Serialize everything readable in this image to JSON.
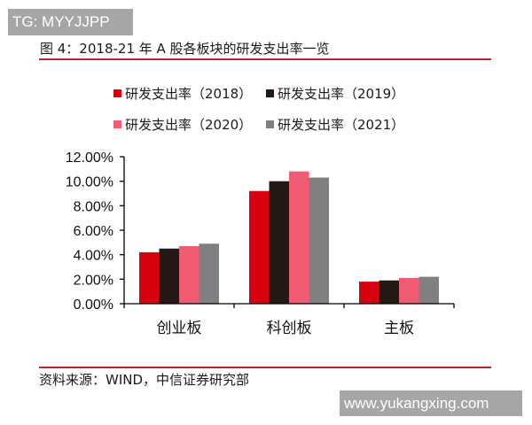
{
  "watermark_top": "TG: MYYJJPP",
  "title": "图 4：2018-21 年 A 股各板块的研发支出率一览",
  "source": "资料来源：WIND，中信证券研究部",
  "watermark_bottom": "www.yukangxing.com",
  "legend": [
    {
      "label": "研发支出率（2018）",
      "color": "#d7000f"
    },
    {
      "label": "研发支出率（2019）",
      "color": "#231815"
    },
    {
      "label": "研发支出率（2020）",
      "color": "#f25c73"
    },
    {
      "label": "研发支出率（2021）",
      "color": "#808080"
    }
  ],
  "chart_data": {
    "type": "bar",
    "title": "图 4：2018-21 年 A 股各板块的研发支出率一览",
    "xlabel": "",
    "ylabel": "",
    "categories": [
      "创业板",
      "科创板",
      "主板"
    ],
    "series": [
      {
        "name": "研发支出率（2018）",
        "color": "#d7000f",
        "values": [
          4.2,
          9.2,
          1.8
        ]
      },
      {
        "name": "研发支出率（2019）",
        "color": "#231815",
        "values": [
          4.5,
          10.0,
          1.9
        ]
      },
      {
        "name": "研发支出率（2020）",
        "color": "#f25c73",
        "values": [
          4.7,
          10.8,
          2.1
        ]
      },
      {
        "name": "研发支出率（2021）",
        "color": "#808080",
        "values": [
          4.9,
          10.3,
          2.2
        ]
      }
    ],
    "ylim": [
      0,
      12
    ],
    "yticks": [
      "0.00%",
      "2.00%",
      "4.00%",
      "6.00%",
      "8.00%",
      "10.00%",
      "12.00%"
    ],
    "unit": "%",
    "grid": false,
    "legend_position": "top"
  }
}
